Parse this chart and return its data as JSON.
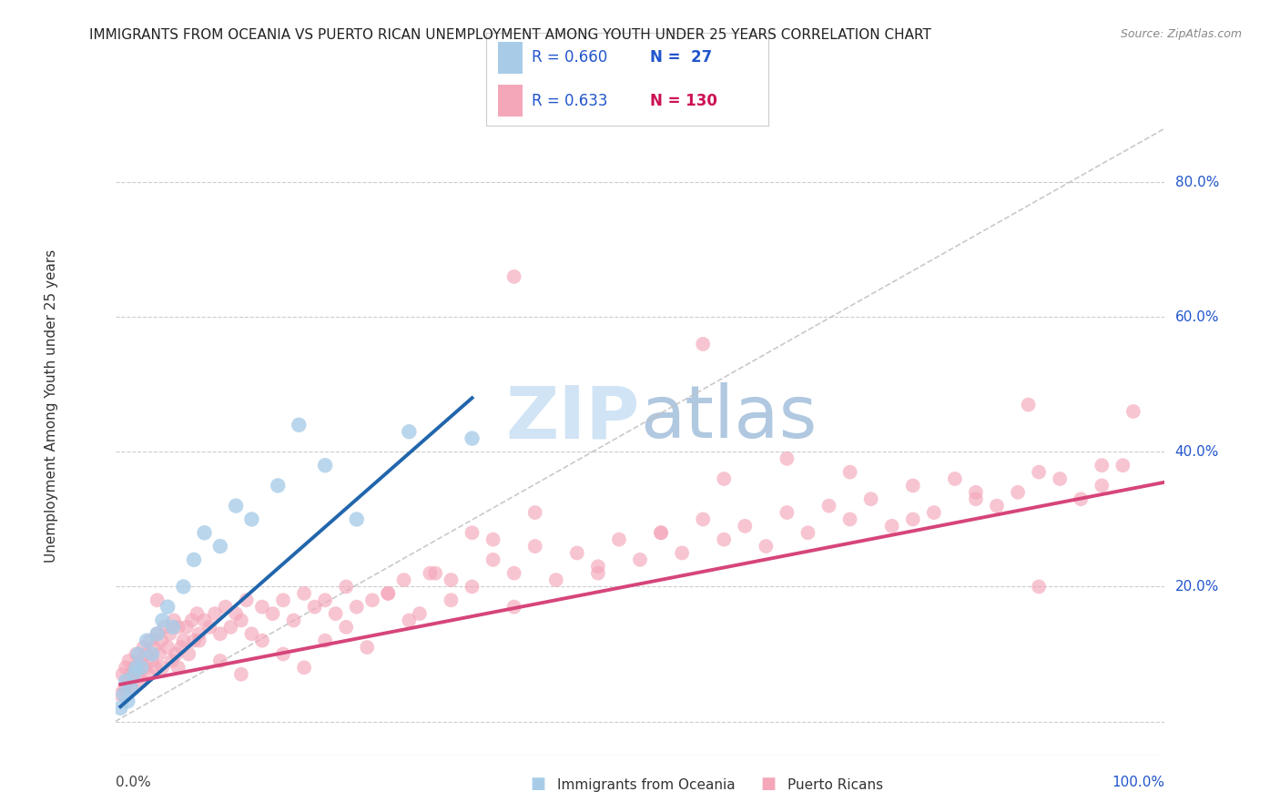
{
  "title": "IMMIGRANTS FROM OCEANIA VS PUERTO RICAN UNEMPLOYMENT AMONG YOUTH UNDER 25 YEARS CORRELATION CHART",
  "source": "Source: ZipAtlas.com",
  "ylabel": "Unemployment Among Youth under 25 years",
  "legend_label_1": "Immigrants from Oceania",
  "legend_label_2": "Puerto Ricans",
  "legend_r1": "R = 0.660",
  "legend_n1": "N =  27",
  "legend_r2": "R = 0.633",
  "legend_n2": "N = 130",
  "color_blue": "#a8cce8",
  "color_pink": "#f4a7b9",
  "line_blue": "#2166ac",
  "line_pink": "#d6457a",
  "dashed_line_color": "#c0c0c0",
  "background_color": "#ffffff",
  "grid_color": "#cccccc",
  "watermark_color": "#d0e4f5",
  "title_color": "#222222",
  "label_color": "#2255cc",
  "source_color": "#888888",
  "xlim": [
    0.0,
    1.0
  ],
  "ylim": [
    -0.05,
    0.95
  ],
  "ytick_positions": [
    0.0,
    0.2,
    0.4,
    0.6,
    0.8
  ],
  "ytick_labels": [
    "",
    "20.0%",
    "40.0%",
    "60.0%",
    "80.0%"
  ],
  "blue_x": [
    0.005,
    0.008,
    0.01,
    0.012,
    0.015,
    0.018,
    0.02,
    0.022,
    0.025,
    0.03,
    0.035,
    0.04,
    0.045,
    0.05,
    0.055,
    0.065,
    0.075,
    0.085,
    0.1,
    0.115,
    0.13,
    0.155,
    0.175,
    0.2,
    0.23,
    0.28,
    0.34
  ],
  "blue_y": [
    0.02,
    0.04,
    0.06,
    0.03,
    0.05,
    0.07,
    0.08,
    0.1,
    0.08,
    0.12,
    0.1,
    0.13,
    0.15,
    0.17,
    0.14,
    0.2,
    0.24,
    0.28,
    0.26,
    0.32,
    0.3,
    0.35,
    0.44,
    0.38,
    0.3,
    0.43,
    0.42
  ],
  "pink_x": [
    0.005,
    0.007,
    0.009,
    0.01,
    0.012,
    0.013,
    0.015,
    0.016,
    0.018,
    0.02,
    0.022,
    0.024,
    0.025,
    0.027,
    0.028,
    0.03,
    0.032,
    0.033,
    0.035,
    0.037,
    0.038,
    0.04,
    0.042,
    0.044,
    0.045,
    0.047,
    0.05,
    0.052,
    0.054,
    0.056,
    0.058,
    0.06,
    0.063,
    0.065,
    0.068,
    0.07,
    0.073,
    0.075,
    0.078,
    0.08,
    0.085,
    0.09,
    0.095,
    0.1,
    0.105,
    0.11,
    0.115,
    0.12,
    0.125,
    0.13,
    0.14,
    0.15,
    0.16,
    0.17,
    0.18,
    0.19,
    0.2,
    0.21,
    0.22,
    0.23,
    0.245,
    0.26,
    0.275,
    0.29,
    0.305,
    0.32,
    0.34,
    0.36,
    0.38,
    0.4,
    0.42,
    0.44,
    0.46,
    0.48,
    0.5,
    0.52,
    0.54,
    0.56,
    0.58,
    0.6,
    0.62,
    0.64,
    0.66,
    0.68,
    0.7,
    0.72,
    0.74,
    0.76,
    0.78,
    0.8,
    0.82,
    0.84,
    0.86,
    0.88,
    0.9,
    0.92,
    0.94,
    0.96,
    0.04,
    0.06,
    0.08,
    0.1,
    0.12,
    0.14,
    0.16,
    0.18,
    0.2,
    0.22,
    0.24,
    0.26,
    0.28,
    0.3,
    0.32,
    0.34,
    0.36,
    0.38,
    0.4,
    0.46,
    0.52,
    0.58,
    0.64,
    0.7,
    0.76,
    0.82,
    0.88,
    0.94,
    0.38,
    0.56,
    0.87,
    0.97
  ],
  "pink_y": [
    0.04,
    0.07,
    0.05,
    0.08,
    0.06,
    0.09,
    0.07,
    0.05,
    0.08,
    0.1,
    0.07,
    0.09,
    0.06,
    0.11,
    0.08,
    0.1,
    0.07,
    0.12,
    0.09,
    0.11,
    0.08,
    0.13,
    0.1,
    0.12,
    0.08,
    0.14,
    0.11,
    0.13,
    0.09,
    0.15,
    0.1,
    0.14,
    0.11,
    0.12,
    0.14,
    0.1,
    0.15,
    0.12,
    0.16,
    0.13,
    0.15,
    0.14,
    0.16,
    0.13,
    0.17,
    0.14,
    0.16,
    0.15,
    0.18,
    0.13,
    0.17,
    0.16,
    0.18,
    0.15,
    0.19,
    0.17,
    0.18,
    0.16,
    0.2,
    0.17,
    0.18,
    0.19,
    0.21,
    0.16,
    0.22,
    0.18,
    0.2,
    0.24,
    0.22,
    0.26,
    0.21,
    0.25,
    0.23,
    0.27,
    0.24,
    0.28,
    0.25,
    0.3,
    0.27,
    0.29,
    0.26,
    0.31,
    0.28,
    0.32,
    0.3,
    0.33,
    0.29,
    0.35,
    0.31,
    0.36,
    0.33,
    0.32,
    0.34,
    0.37,
    0.36,
    0.33,
    0.35,
    0.38,
    0.18,
    0.08,
    0.12,
    0.09,
    0.07,
    0.12,
    0.1,
    0.08,
    0.12,
    0.14,
    0.11,
    0.19,
    0.15,
    0.22,
    0.21,
    0.28,
    0.27,
    0.17,
    0.31,
    0.22,
    0.28,
    0.36,
    0.39,
    0.37,
    0.3,
    0.34,
    0.2,
    0.38,
    0.66,
    0.56,
    0.47,
    0.46
  ],
  "blue_line_x0": 0.005,
  "blue_line_x1": 0.34,
  "blue_line_y0": 0.022,
  "blue_line_y1": 0.48,
  "pink_line_x0": 0.005,
  "pink_line_x1": 1.0,
  "pink_line_y0": 0.055,
  "pink_line_y1": 0.355
}
